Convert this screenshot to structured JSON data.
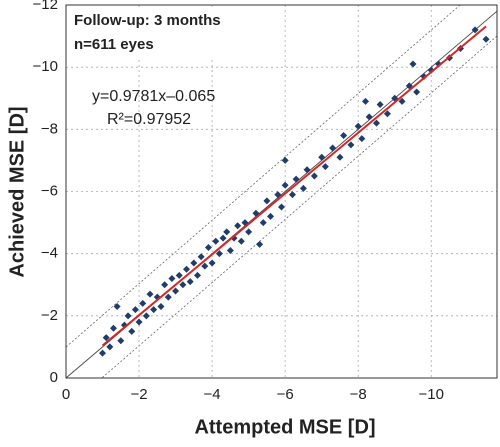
{
  "chart_data": {
    "type": "scatter",
    "xlabel": "Attempted MSE [D]",
    "ylabel": "Achieved MSE [D]",
    "annotations": [
      "Follow-up: 3 months",
      "n=611 eyes",
      "y=0.9781x–0.065",
      "R²=0.97952"
    ],
    "fit": {
      "slope": 0.9781,
      "intercept": -0.065,
      "color": "#d62728"
    },
    "color": "#1f3d6b",
    "grid": true,
    "xlim": [
      0,
      -11.8
    ],
    "ylim": [
      0,
      -12
    ],
    "xticks": [
      0,
      {
        "value": -2,
        "label": "−2"
      },
      {
        "value": -4,
        "label": "−4"
      },
      {
        "value": -6,
        "label": "−6"
      },
      {
        "value": -8,
        "label": "−8"
      },
      {
        "value": -10,
        "label": "−10"
      }
    ],
    "yticks": [
      0,
      {
        "value": -2,
        "label": "−2"
      },
      {
        "value": -4,
        "label": "−4"
      },
      {
        "value": -6,
        "label": "−6"
      },
      {
        "value": -8,
        "label": "−8"
      },
      {
        "value": -10,
        "label": "−10"
      },
      {
        "value": -12,
        "label": "−12"
      }
    ],
    "x": [
      -1.0,
      -1.1,
      -1.2,
      -1.3,
      -1.4,
      -1.5,
      -1.6,
      -1.7,
      -1.8,
      -1.9,
      -2.0,
      -2.1,
      -2.2,
      -2.3,
      -2.4,
      -2.5,
      -2.6,
      -2.7,
      -2.8,
      -2.9,
      -3.0,
      -3.1,
      -3.2,
      -3.3,
      -3.4,
      -3.5,
      -3.6,
      -3.7,
      -3.8,
      -3.9,
      -4.0,
      -4.1,
      -4.2,
      -4.3,
      -4.4,
      -4.5,
      -4.6,
      -4.7,
      -4.8,
      -4.9,
      -5.0,
      -5.2,
      -5.4,
      -5.5,
      -5.6,
      -5.8,
      -5.9,
      -6.0,
      -6.2,
      -6.3,
      -6.5,
      -6.6,
      -6.8,
      -7.0,
      -7.1,
      -7.3,
      -7.5,
      -7.6,
      -7.8,
      -8.0,
      -8.1,
      -8.3,
      -8.5,
      -8.6,
      -8.8,
      -9.0,
      -9.2,
      -9.4,
      -9.6,
      -9.8,
      -10.0,
      -10.2,
      -10.5,
      -10.8,
      -11.2,
      -11.5,
      -6.0,
      -5.3,
      -8.2,
      -9.5
    ],
    "values": [
      -0.8,
      -1.3,
      -1.0,
      -1.6,
      -2.3,
      -1.2,
      -1.7,
      -2.0,
      -1.5,
      -2.2,
      -1.8,
      -2.4,
      -2.0,
      -2.7,
      -2.2,
      -2.6,
      -2.3,
      -3.0,
      -2.6,
      -3.2,
      -2.8,
      -3.3,
      -3.0,
      -3.5,
      -3.1,
      -3.7,
      -3.3,
      -3.9,
      -3.6,
      -4.2,
      -3.7,
      -4.4,
      -4.0,
      -4.5,
      -4.7,
      -4.1,
      -4.5,
      -4.9,
      -4.4,
      -5.0,
      -4.7,
      -5.3,
      -5.0,
      -5.7,
      -5.2,
      -5.9,
      -5.5,
      -6.2,
      -5.9,
      -6.4,
      -6.1,
      -6.7,
      -6.5,
      -7.1,
      -6.8,
      -7.4,
      -7.1,
      -7.8,
      -7.5,
      -8.1,
      -7.7,
      -8.4,
      -8.2,
      -8.8,
      -8.5,
      -9.0,
      -8.9,
      -9.4,
      -9.2,
      -9.7,
      -9.9,
      -10.1,
      -10.3,
      -10.6,
      -11.2,
      -10.9,
      -7.0,
      -4.3,
      -8.9,
      -10.1
    ]
  }
}
